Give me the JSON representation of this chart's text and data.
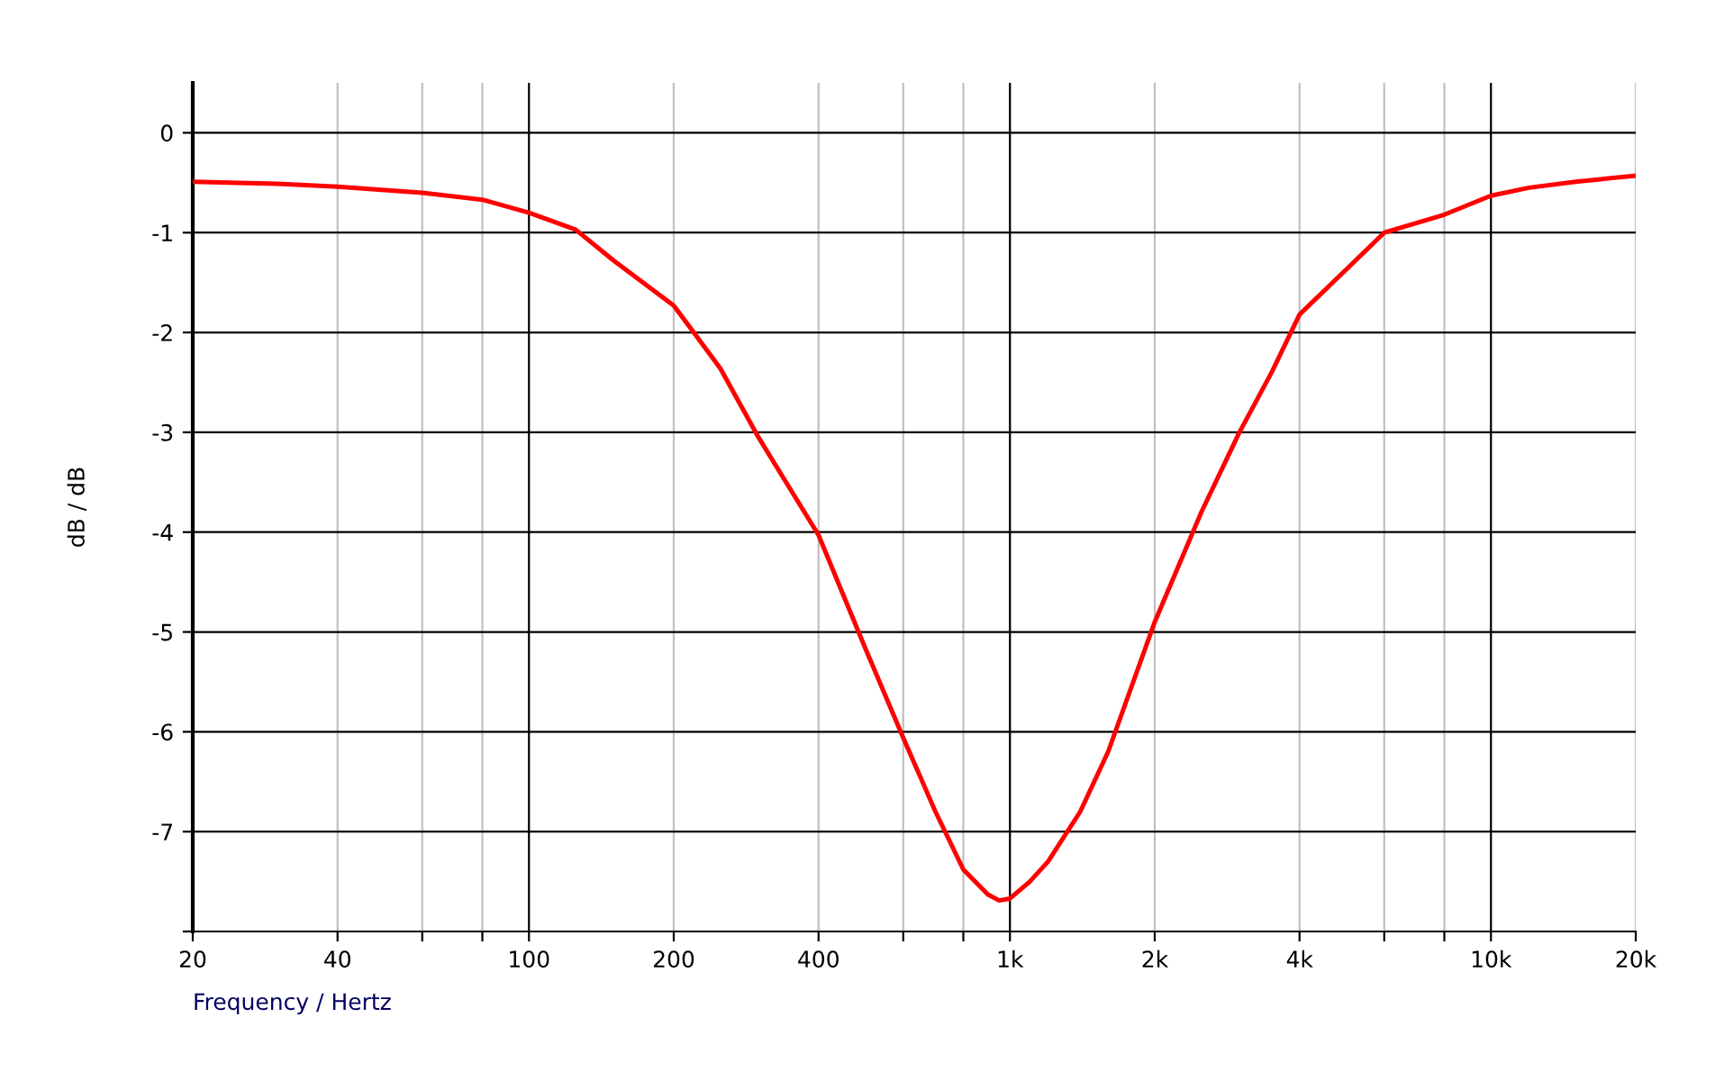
{
  "chart_data": {
    "type": "line",
    "xlabel": "Frequency / Hertz",
    "ylabel": "dB / dB",
    "log": "x",
    "grid": true,
    "legend": false,
    "marker": "none",
    "line_style": "solid",
    "xlim": [
      20,
      20000
    ],
    "ylim": [
      -8,
      0.5
    ],
    "xticks": [
      20,
      40,
      {
        "value": 60,
        "label": null
      },
      {
        "value": 80,
        "label": null
      },
      100,
      200,
      400,
      {
        "value": 600,
        "label": null
      },
      {
        "value": 800,
        "label": null
      },
      {
        "value": 1000,
        "label": "1k"
      },
      {
        "value": 2000,
        "label": "2k"
      },
      {
        "value": 4000,
        "label": "4k"
      },
      {
        "value": 6000,
        "label": null
      },
      {
        "value": 8000,
        "label": null
      },
      {
        "value": 10000,
        "label": "10k"
      },
      {
        "value": 20000,
        "label": "20k"
      }
    ],
    "yticks": [
      0,
      -1,
      -2,
      -3,
      -4,
      -5,
      -6,
      -7,
      {
        "value": -8,
        "label": null
      }
    ],
    "series": [
      {
        "color": "#ff0000",
        "x": [
          20,
          30,
          40,
          60,
          80,
          100,
          125,
          150,
          200,
          250,
          300,
          400,
          500,
          600,
          700,
          800,
          900,
          950,
          1000,
          1100,
          1200,
          1400,
          1600,
          2000,
          2500,
          3000,
          3500,
          4000,
          5000,
          6000,
          8000,
          10000,
          12000,
          15000,
          20000
        ],
        "values": [
          -0.49,
          -0.51,
          -0.54,
          -0.6,
          -0.67,
          -0.8,
          -0.97,
          -1.28,
          -1.73,
          -2.36,
          -3.05,
          -4.03,
          -5.16,
          -6.06,
          -6.8,
          -7.38,
          -7.63,
          -7.69,
          -7.67,
          -7.5,
          -7.3,
          -6.8,
          -6.2,
          -4.9,
          -3.8,
          -3.0,
          -2.4,
          -1.82,
          -1.37,
          -1.0,
          -0.82,
          -0.63,
          -0.55,
          -0.49,
          -0.43
        ]
      }
    ]
  }
}
